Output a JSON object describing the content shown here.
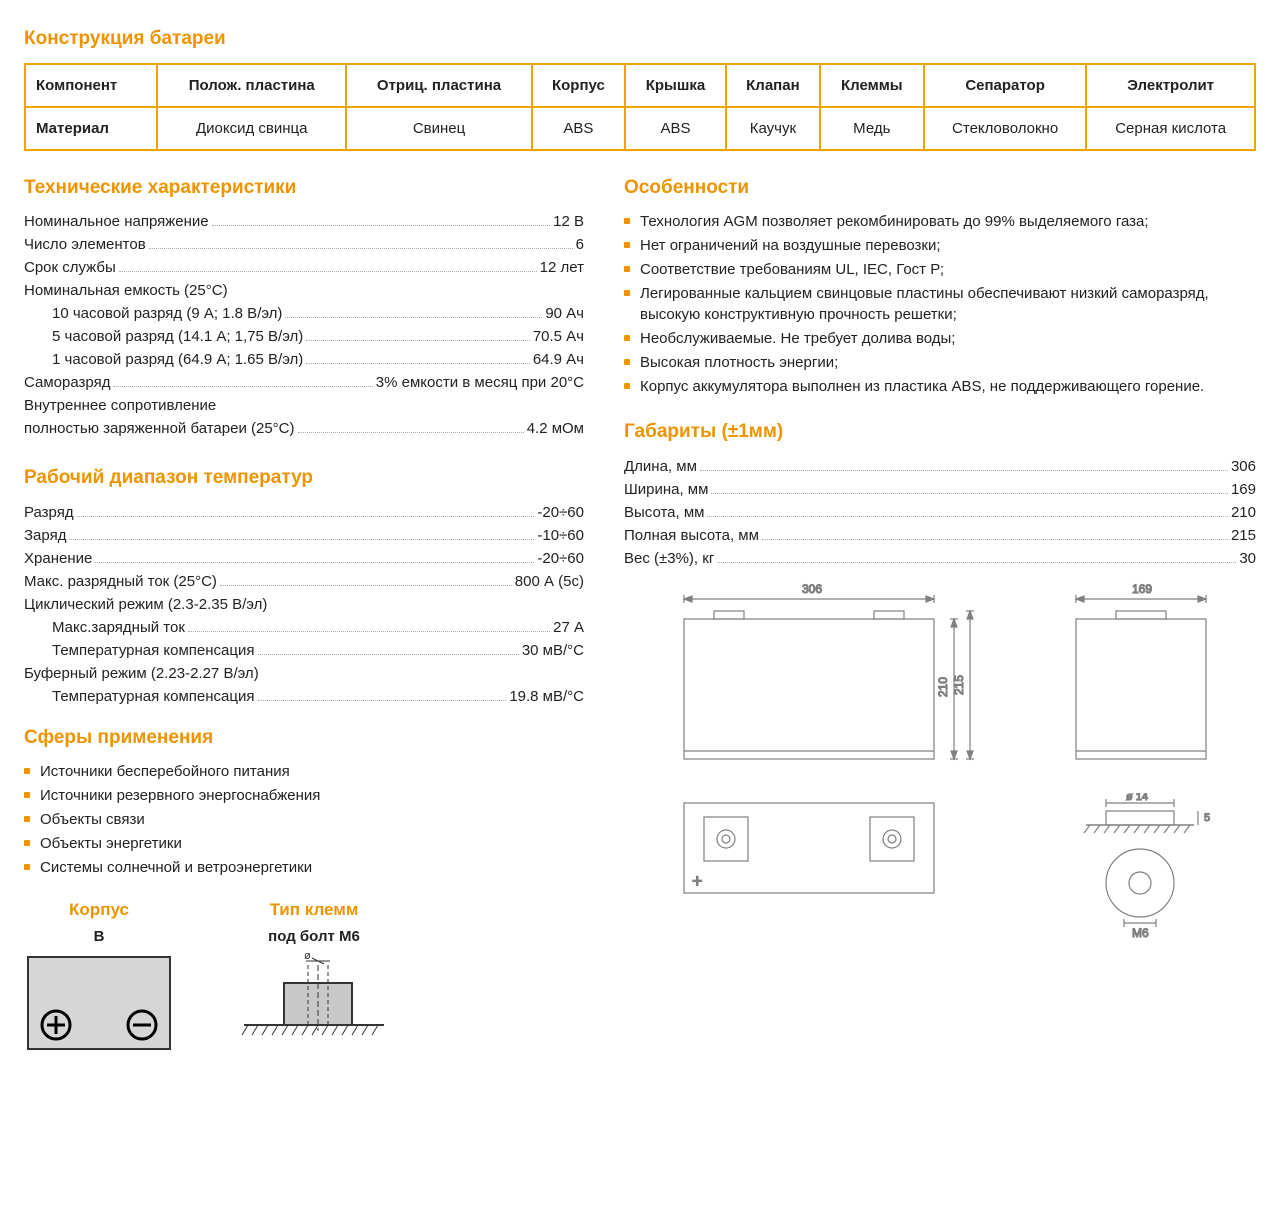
{
  "colors": {
    "accent": "#ee9400",
    "text": "#222",
    "tableBorder": "#f0a400",
    "drawingStroke": "#808080"
  },
  "construction": {
    "title": "Конструкция батареи",
    "headers": [
      "Компонент",
      "Полож. пластина",
      "Отриц. пластина",
      "Корпус",
      "Крышка",
      "Клапан",
      "Клеммы",
      "Сепаратор",
      "Электролит"
    ],
    "row_label": "Материал",
    "row_values": [
      "Диоксид свинца",
      "Свинец",
      "ABS",
      "ABS",
      "Каучук",
      "Медь",
      "Стекловолокно",
      "Серная кислота"
    ]
  },
  "specs": {
    "title": "Технические характеристики",
    "items": [
      {
        "label": "Номинальное напряжение",
        "value": "12 В"
      },
      {
        "label": "Число элементов",
        "value": "6"
      },
      {
        "label": "Срок службы",
        "value": "12 лет"
      },
      {
        "label": "Номинальная емкость (25°С)",
        "value": null
      },
      {
        "label": "10 часовой разряд (9 А; 1.8 В/эл)",
        "value": "90 Ач",
        "indent": true
      },
      {
        "label": "5 часовой разряд (14.1 А; 1,75 В/эл)",
        "value": "70.5 Ач",
        "indent": true
      },
      {
        "label": "1 часовой разряд (64.9 А; 1.65 В/эл)",
        "value": "64.9 Ач",
        "indent": true
      },
      {
        "label": "Саморазряд",
        "value": "3% емкости в месяц при 20°С"
      },
      {
        "label": "Внутреннее сопротивление",
        "value": null
      },
      {
        "label": "полностью заряженной батареи (25°С)",
        "value": "4.2 мОм"
      }
    ]
  },
  "temps": {
    "title": "Рабочий диапазон температур",
    "items": [
      {
        "label": "Разряд",
        "value": "-20÷60"
      },
      {
        "label": "Заряд",
        "value": "-10÷60"
      },
      {
        "label": "Хранение",
        "value": "-20÷60"
      },
      {
        "label": "Макс. разрядный ток (25°С)",
        "value": "800 А (5с)"
      },
      {
        "label": "Циклический режим (2.3-2.35 В/эл)",
        "value": null
      },
      {
        "label": "Макс.зарядный ток",
        "value": "27 А",
        "indent": true
      },
      {
        "label": "Температурная компенсация",
        "value": "30 мВ/°С",
        "indent": true
      },
      {
        "label": "Буферный режим (2.23-2.27 В/эл)",
        "value": null
      },
      {
        "label": "Температурная компенсация",
        "value": "19.8 мВ/°С",
        "indent": true
      }
    ]
  },
  "applications": {
    "title": "Сферы применения",
    "items": [
      "Источники бесперебойного питания",
      "Источники резервного энергоснабжения",
      "Объекты связи",
      "Объекты энергетики",
      "Системы солнечной и ветроэнергетики"
    ]
  },
  "features": {
    "title": "Особенности",
    "items": [
      "Технология AGM позволяет рекомбинировать до 99% выделяемого газа;",
      "Нет ограничений на воздушные перевозки;",
      "Соответствие требованиям UL, IEC, Гост Р;",
      "Легированные кальцием свинцовые пластины обеспечивают низкий саморазряд, высокую конструктивную прочность решетки;",
      "Необслуживаемые. Не требует долива воды;",
      "Высокая плотность энергии;",
      "Корпус аккумулятора выполнен из пластика ABS, не поддерживающего горение."
    ]
  },
  "dimensions": {
    "title": "Габариты (±1мм)",
    "items": [
      {
        "label": "Длина, мм",
        "value": "306"
      },
      {
        "label": "Ширина, мм",
        "value": "169"
      },
      {
        "label": "Высота, мм",
        "value": "210"
      },
      {
        "label": "Полная высота, мм",
        "value": "215"
      },
      {
        "label": "Вес (±3%), кг",
        "value": "30"
      }
    ]
  },
  "case_diagram": {
    "title": "Корпус",
    "subtitle": "B"
  },
  "terminal_diagram": {
    "title": "Тип клемм",
    "subtitle": "под болт M6"
  },
  "drawing_labels": {
    "length": "306",
    "width": "169",
    "height": "210",
    "total_height": "215",
    "bolt_d": "ø 14",
    "bolt_h": "5",
    "thread": "M6"
  }
}
